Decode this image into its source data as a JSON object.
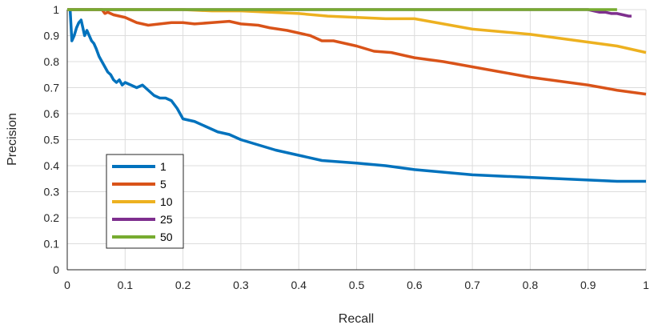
{
  "chart_data": {
    "type": "line",
    "title": "",
    "xlabel": "Recall",
    "ylabel": "Precision",
    "xlim": [
      0,
      1
    ],
    "ylim": [
      0,
      1
    ],
    "xticks": [
      "0",
      "0.1",
      "0.2",
      "0.3",
      "0.4",
      "0.5",
      "0.6",
      "0.7",
      "0.8",
      "0.9",
      "1"
    ],
    "yticks": [
      "0",
      "0.1",
      "0.2",
      "0.3",
      "0.4",
      "0.5",
      "0.6",
      "0.7",
      "0.8",
      "0.9",
      "1"
    ],
    "grid": true,
    "legend_position": "lower-left",
    "series": [
      {
        "name": "1",
        "color": "#0072BD",
        "x": [
          0.005,
          0.008,
          0.012,
          0.016,
          0.02,
          0.024,
          0.027,
          0.03,
          0.034,
          0.038,
          0.042,
          0.046,
          0.05,
          0.055,
          0.06,
          0.065,
          0.07,
          0.075,
          0.08,
          0.085,
          0.09,
          0.095,
          0.1,
          0.11,
          0.12,
          0.13,
          0.14,
          0.15,
          0.16,
          0.17,
          0.18,
          0.19,
          0.2,
          0.22,
          0.24,
          0.26,
          0.28,
          0.3,
          0.33,
          0.36,
          0.4,
          0.44,
          0.5,
          0.55,
          0.6,
          0.65,
          0.7,
          0.8,
          0.9,
          0.95,
          1.0
        ],
        "y": [
          1.0,
          0.88,
          0.9,
          0.93,
          0.95,
          0.96,
          0.93,
          0.9,
          0.92,
          0.9,
          0.88,
          0.87,
          0.85,
          0.82,
          0.8,
          0.78,
          0.76,
          0.75,
          0.73,
          0.72,
          0.73,
          0.71,
          0.72,
          0.71,
          0.7,
          0.71,
          0.69,
          0.67,
          0.66,
          0.66,
          0.65,
          0.62,
          0.58,
          0.57,
          0.55,
          0.53,
          0.52,
          0.5,
          0.48,
          0.46,
          0.44,
          0.42,
          0.41,
          0.4,
          0.385,
          0.375,
          0.365,
          0.355,
          0.345,
          0.34,
          0.34
        ]
      },
      {
        "name": "5",
        "color": "#D95319",
        "x": [
          0.0,
          0.06,
          0.065,
          0.07,
          0.08,
          0.1,
          0.12,
          0.14,
          0.16,
          0.18,
          0.2,
          0.22,
          0.25,
          0.28,
          0.3,
          0.33,
          0.35,
          0.38,
          0.4,
          0.42,
          0.44,
          0.46,
          0.5,
          0.53,
          0.56,
          0.6,
          0.65,
          0.7,
          0.75,
          0.8,
          0.85,
          0.9,
          0.95,
          1.0
        ],
        "y": [
          1.0,
          1.0,
          0.985,
          0.99,
          0.98,
          0.97,
          0.95,
          0.94,
          0.945,
          0.95,
          0.95,
          0.945,
          0.95,
          0.955,
          0.945,
          0.94,
          0.93,
          0.92,
          0.91,
          0.9,
          0.88,
          0.88,
          0.86,
          0.84,
          0.835,
          0.815,
          0.8,
          0.78,
          0.76,
          0.74,
          0.725,
          0.71,
          0.69,
          0.675
        ]
      },
      {
        "name": "10",
        "color": "#EDB120",
        "x": [
          0.0,
          0.2,
          0.25,
          0.3,
          0.35,
          0.4,
          0.45,
          0.5,
          0.55,
          0.6,
          0.65,
          0.7,
          0.75,
          0.8,
          0.85,
          0.9,
          0.95,
          1.0
        ],
        "y": [
          1.0,
          1.0,
          0.995,
          0.995,
          0.99,
          0.985,
          0.975,
          0.97,
          0.965,
          0.965,
          0.945,
          0.925,
          0.915,
          0.905,
          0.89,
          0.875,
          0.86,
          0.835
        ]
      },
      {
        "name": "25",
        "color": "#7E2F8E",
        "x": [
          0.0,
          0.9,
          0.91,
          0.92,
          0.93,
          0.94,
          0.95,
          0.96,
          0.97,
          0.975
        ],
        "y": [
          1.0,
          1.0,
          0.995,
          0.99,
          0.99,
          0.985,
          0.985,
          0.98,
          0.975,
          0.975
        ]
      },
      {
        "name": "50",
        "color": "#77AC30",
        "x": [
          0.0,
          0.95
        ],
        "y": [
          1.0,
          1.0
        ]
      }
    ]
  }
}
